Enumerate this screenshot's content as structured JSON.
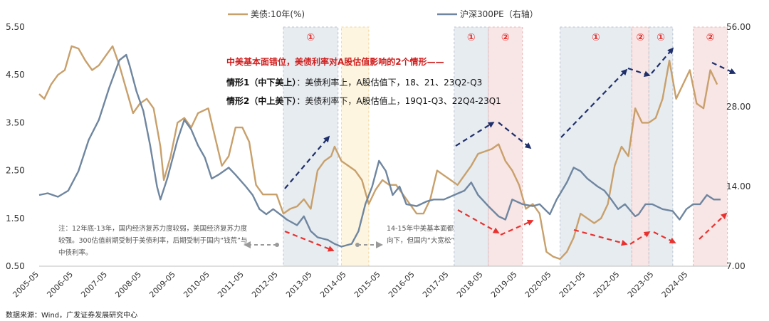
{
  "chart_data": {
    "type": "line",
    "x_start": "2005-05",
    "x_end": "2025-05",
    "xticks": [
      "2005-05",
      "2006-05",
      "2007-05",
      "2008-05",
      "2009-05",
      "2010-05",
      "2011-05",
      "2012-05",
      "2013-05",
      "2014-05",
      "2015-05",
      "2016-05",
      "2017-05",
      "2018-05",
      "2019-05",
      "2020-05",
      "2021-05",
      "2022-05",
      "2023-05",
      "2024-05"
    ],
    "left_axis": {
      "label": "美债:10年(%)",
      "ticks": [
        "0.50",
        "1.50",
        "2.50",
        "3.50",
        "4.50",
        "5.50"
      ],
      "ylim": [
        0.5,
        5.5
      ]
    },
    "right_axis": {
      "label": "沪深300PE（右轴）",
      "ticks": [
        "7.00",
        "14.00",
        "28.00",
        "56.00"
      ],
      "scale": "log2",
      "ylim": [
        7,
        56
      ]
    },
    "colors": {
      "yield": "#c8a06b",
      "pe": "#6f86a0",
      "band_blue": "#dfe5ec",
      "band_red": "#f6dcdc",
      "band_yellow": "#fcf1d6",
      "arrow_navy": "#1f2f6b",
      "arrow_red": "#e8322f"
    },
    "series": [
      {
        "name": "美债:10年(%)",
        "axis": "left",
        "points": [
          [
            2005.35,
            4.1
          ],
          [
            2005.5,
            4.0
          ],
          [
            2005.7,
            4.3
          ],
          [
            2005.9,
            4.5
          ],
          [
            2006.1,
            4.6
          ],
          [
            2006.3,
            5.1
          ],
          [
            2006.5,
            5.05
          ],
          [
            2006.7,
            4.8
          ],
          [
            2006.9,
            4.6
          ],
          [
            2007.1,
            4.7
          ],
          [
            2007.3,
            4.9
          ],
          [
            2007.5,
            5.1
          ],
          [
            2007.7,
            4.7
          ],
          [
            2007.9,
            4.2
          ],
          [
            2008.1,
            3.7
          ],
          [
            2008.3,
            3.9
          ],
          [
            2008.5,
            4.0
          ],
          [
            2008.7,
            3.8
          ],
          [
            2008.9,
            3.0
          ],
          [
            2009.0,
            2.3
          ],
          [
            2009.2,
            2.8
          ],
          [
            2009.4,
            3.5
          ],
          [
            2009.6,
            3.6
          ],
          [
            2009.8,
            3.4
          ],
          [
            2010.0,
            3.7
          ],
          [
            2010.3,
            3.8
          ],
          [
            2010.5,
            3.2
          ],
          [
            2010.7,
            2.6
          ],
          [
            2010.9,
            2.8
          ],
          [
            2011.1,
            3.4
          ],
          [
            2011.3,
            3.4
          ],
          [
            2011.5,
            3.1
          ],
          [
            2011.7,
            2.2
          ],
          [
            2011.9,
            2.0
          ],
          [
            2012.1,
            2.0
          ],
          [
            2012.3,
            2.0
          ],
          [
            2012.5,
            1.6
          ],
          [
            2012.7,
            1.7
          ],
          [
            2012.9,
            1.75
          ],
          [
            2013.1,
            1.9
          ],
          [
            2013.3,
            1.7
          ],
          [
            2013.5,
            2.5
          ],
          [
            2013.7,
            2.7
          ],
          [
            2013.9,
            2.8
          ],
          [
            2014.0,
            3.0
          ],
          [
            2014.2,
            2.7
          ],
          [
            2014.4,
            2.6
          ],
          [
            2014.6,
            2.5
          ],
          [
            2014.8,
            2.3
          ],
          [
            2015.0,
            1.8
          ],
          [
            2015.2,
            2.1
          ],
          [
            2015.4,
            2.3
          ],
          [
            2015.6,
            2.2
          ],
          [
            2015.8,
            2.2
          ],
          [
            2016.0,
            2.0
          ],
          [
            2016.2,
            1.8
          ],
          [
            2016.4,
            1.6
          ],
          [
            2016.6,
            1.6
          ],
          [
            2016.8,
            1.9
          ],
          [
            2017.0,
            2.5
          ],
          [
            2017.2,
            2.4
          ],
          [
            2017.4,
            2.3
          ],
          [
            2017.6,
            2.2
          ],
          [
            2017.8,
            2.4
          ],
          [
            2018.0,
            2.6
          ],
          [
            2018.2,
            2.85
          ],
          [
            2018.4,
            2.9
          ],
          [
            2018.6,
            2.95
          ],
          [
            2018.8,
            3.05
          ],
          [
            2019.0,
            2.7
          ],
          [
            2019.2,
            2.5
          ],
          [
            2019.4,
            2.2
          ],
          [
            2019.6,
            1.7
          ],
          [
            2019.8,
            1.8
          ],
          [
            2020.0,
            1.6
          ],
          [
            2020.2,
            0.8
          ],
          [
            2020.4,
            0.7
          ],
          [
            2020.6,
            0.65
          ],
          [
            2020.8,
            0.8
          ],
          [
            2021.0,
            1.1
          ],
          [
            2021.2,
            1.6
          ],
          [
            2021.4,
            1.5
          ],
          [
            2021.6,
            1.4
          ],
          [
            2021.8,
            1.5
          ],
          [
            2022.0,
            1.8
          ],
          [
            2022.2,
            2.6
          ],
          [
            2022.4,
            3.0
          ],
          [
            2022.6,
            2.8
          ],
          [
            2022.8,
            3.8
          ],
          [
            2023.0,
            3.5
          ],
          [
            2023.2,
            3.5
          ],
          [
            2023.4,
            3.6
          ],
          [
            2023.6,
            4.0
          ],
          [
            2023.8,
            4.8
          ],
          [
            2024.0,
            4.0
          ],
          [
            2024.2,
            4.3
          ],
          [
            2024.4,
            4.6
          ],
          [
            2024.6,
            3.9
          ],
          [
            2024.8,
            3.8
          ],
          [
            2025.0,
            4.6
          ],
          [
            2025.2,
            4.3
          ]
        ]
      },
      {
        "name": "沪深300PE（右轴）",
        "axis": "right",
        "points": [
          [
            2005.35,
            13.0
          ],
          [
            2005.6,
            13.2
          ],
          [
            2005.9,
            12.8
          ],
          [
            2006.2,
            13.5
          ],
          [
            2006.5,
            16.0
          ],
          [
            2006.8,
            21.0
          ],
          [
            2007.1,
            25.0
          ],
          [
            2007.4,
            33.0
          ],
          [
            2007.7,
            42.0
          ],
          [
            2007.9,
            44.0
          ],
          [
            2008.0,
            40.0
          ],
          [
            2008.2,
            32.0
          ],
          [
            2008.4,
            27.0
          ],
          [
            2008.6,
            20.0
          ],
          [
            2008.8,
            14.0
          ],
          [
            2008.9,
            12.5
          ],
          [
            2009.1,
            15.0
          ],
          [
            2009.4,
            21.0
          ],
          [
            2009.6,
            25.0
          ],
          [
            2009.8,
            23.0
          ],
          [
            2010.0,
            20.0
          ],
          [
            2010.2,
            18.0
          ],
          [
            2010.4,
            15.0
          ],
          [
            2010.6,
            15.5
          ],
          [
            2010.9,
            16.5
          ],
          [
            2011.1,
            15.5
          ],
          [
            2011.4,
            14.0
          ],
          [
            2011.6,
            13.0
          ],
          [
            2011.8,
            11.5
          ],
          [
            2012.0,
            11.0
          ],
          [
            2012.2,
            11.5
          ],
          [
            2012.4,
            11.0
          ],
          [
            2012.6,
            10.5
          ],
          [
            2012.9,
            10.0
          ],
          [
            2013.1,
            10.8
          ],
          [
            2013.3,
            9.5
          ],
          [
            2013.5,
            9.0
          ],
          [
            2013.8,
            8.8
          ],
          [
            2014.0,
            8.5
          ],
          [
            2014.2,
            8.3
          ],
          [
            2014.5,
            8.5
          ],
          [
            2014.7,
            9.5
          ],
          [
            2014.9,
            12.0
          ],
          [
            2015.1,
            14.0
          ],
          [
            2015.3,
            17.5
          ],
          [
            2015.5,
            16.0
          ],
          [
            2015.7,
            13.0
          ],
          [
            2015.9,
            14.0
          ],
          [
            2016.1,
            12.0
          ],
          [
            2016.4,
            11.8
          ],
          [
            2016.7,
            12.3
          ],
          [
            2016.9,
            12.5
          ],
          [
            2017.2,
            12.5
          ],
          [
            2017.5,
            13.0
          ],
          [
            2017.8,
            13.5
          ],
          [
            2018.0,
            14.5
          ],
          [
            2018.2,
            13.0
          ],
          [
            2018.5,
            11.8
          ],
          [
            2018.8,
            10.8
          ],
          [
            2019.0,
            10.5
          ],
          [
            2019.2,
            12.5
          ],
          [
            2019.5,
            12.0
          ],
          [
            2019.8,
            11.8
          ],
          [
            2020.0,
            12.0
          ],
          [
            2020.3,
            11.0
          ],
          [
            2020.5,
            12.5
          ],
          [
            2020.8,
            14.5
          ],
          [
            2021.0,
            16.5
          ],
          [
            2021.2,
            16.0
          ],
          [
            2021.4,
            15.0
          ],
          [
            2021.7,
            14.0
          ],
          [
            2021.9,
            13.5
          ],
          [
            2022.1,
            12.5
          ],
          [
            2022.3,
            11.5
          ],
          [
            2022.5,
            12.0
          ],
          [
            2022.8,
            10.8
          ],
          [
            2022.9,
            11.0
          ],
          [
            2023.1,
            12.0
          ],
          [
            2023.3,
            12.0
          ],
          [
            2023.6,
            11.5
          ],
          [
            2023.9,
            11.3
          ],
          [
            2024.1,
            10.5
          ],
          [
            2024.3,
            11.5
          ],
          [
            2024.5,
            12.0
          ],
          [
            2024.7,
            12.0
          ],
          [
            2024.9,
            13.0
          ],
          [
            2025.1,
            12.5
          ],
          [
            2025.3,
            12.5
          ]
        ]
      }
    ],
    "bands": [
      {
        "color": "blue",
        "from": 2012.5,
        "to": 2014.1,
        "label": "①"
      },
      {
        "color": "yellow",
        "from": 2014.2,
        "to": 2015.0,
        "label": ""
      },
      {
        "color": "blue",
        "from": 2017.5,
        "to": 2018.5,
        "label": "①"
      },
      {
        "color": "red",
        "from": 2018.5,
        "to": 2019.5,
        "label": "②"
      },
      {
        "color": "blue",
        "from": 2020.6,
        "to": 2022.7,
        "label": "①"
      },
      {
        "color": "red",
        "from": 2022.7,
        "to": 2023.2,
        "label": "②"
      },
      {
        "color": "blue",
        "from": 2023.2,
        "to": 2023.9,
        "label": "①"
      },
      {
        "color": "red",
        "from": 2024.5,
        "to": 2025.5,
        "label": "②"
      }
    ],
    "annotations": {
      "title": "中美基本面错位，美债利率对A股估值影响的2个情形——",
      "case1_label": "情形1（中下美上）",
      "case1_text": "：美债利率上，A股估值下，18、21、23Q2-Q3",
      "case2_label": "情形2（中上美下）",
      "case2_text": "：美债利率下，A股估值上，19Q1-Q3、22Q4-23Q1",
      "note_left": "注：12年底-13年，国内经济复苏力度较弱，美国经济复苏力度较强。300估值前期受制于美债利率，后期受制于国内“钱荒”与中债利率。",
      "note_right": "14-15年中美基本面都向下，但国内“大宽松”"
    },
    "source": "数据来源：Wind，广发证券发展研究中心"
  }
}
